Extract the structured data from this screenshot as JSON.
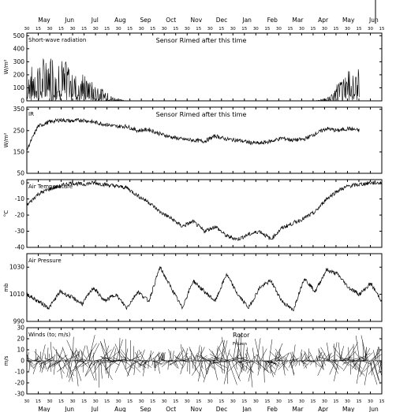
{
  "chart_data": {
    "type": "line",
    "months_top": [
      "May",
      "Jun",
      "Jul",
      "Aug",
      "Sep",
      "Oct",
      "Nov",
      "Dec",
      "Jan",
      "Feb",
      "Mar",
      "Apr",
      "May",
      "Jun"
    ],
    "months_bottom": [
      "May",
      "Jun",
      "Jul",
      "Aug",
      "Sep",
      "Oct",
      "Nov",
      "Dec",
      "Jan",
      "Feb",
      "Mar",
      "Apr",
      "May",
      "Jun"
    ],
    "day_ticks": [
      "30",
      "15",
      "30",
      "15",
      "30",
      "15",
      "30",
      "15",
      "30",
      "15",
      "30",
      "15",
      "30",
      "15",
      "30",
      "15",
      "30",
      "15",
      "30",
      "15",
      "30",
      "15",
      "30",
      "15",
      "30",
      "15",
      "30",
      "15",
      "30",
      "15",
      "30",
      "15"
    ],
    "panels": [
      {
        "label": "Short-wave radiation",
        "annotation": "Sensor Rimed after this time",
        "ylabel": "W/m²",
        "yticks": [
          "500",
          "400",
          "300",
          "200",
          "100",
          "0"
        ],
        "ylim": [
          0,
          520
        ],
        "series": [
          {
            "x": [
              0,
              15,
              30,
              45,
              60,
              75,
              90,
              105,
              120,
              135,
              150,
              165,
              180,
              195,
              210,
              225,
              240,
              255,
              270,
              285,
              300,
              315,
              330,
              345,
              360,
              375,
              390,
              405,
              420,
              435,
              450
            ],
            "values": [
              210,
              280,
              320,
              300,
              250,
              190,
              130,
              70,
              20,
              0,
              0,
              0,
              0,
              0,
              0,
              0,
              0,
              0,
              0,
              0,
              0,
              0,
              0,
              0,
              0,
              0,
              0,
              20,
              120,
              210,
              240
            ]
          }
        ]
      },
      {
        "label": "IR",
        "annotation": "Sensor Rimed after this time",
        "ylabel": "W/m²",
        "yticks": [
          "350",
          "250",
          "150",
          "50"
        ],
        "ylim": [
          50,
          360
        ],
        "series": [
          {
            "x": [
              0,
              15,
              30,
              45,
              60,
              75,
              90,
              105,
              120,
              135,
              150,
              165,
              180,
              195,
              210,
              225,
              240,
              255,
              270,
              285,
              300,
              315,
              330,
              345,
              360,
              375,
              390,
              405,
              420,
              435,
              450
            ],
            "values": [
              160,
              270,
              290,
              300,
              295,
              300,
              290,
              280,
              270,
              270,
              250,
              255,
              235,
              220,
              210,
              205,
              200,
              225,
              210,
              205,
              195,
              190,
              200,
              215,
              205,
              210,
              235,
              260,
              250,
              260,
              250
            ]
          }
        ]
      },
      {
        "label": "Air Temperature",
        "ylabel": "°C",
        "yticks": [
          "0",
          "-10",
          "-20",
          "-30",
          "-40"
        ],
        "ylim": [
          -40,
          2
        ],
        "series": [
          {
            "x": [
              0,
              15,
              30,
              45,
              60,
              75,
              90,
              105,
              120,
              135,
              150,
              165,
              180,
              195,
              210,
              225,
              240,
              255,
              270,
              285,
              300,
              315,
              330,
              345,
              360,
              375,
              390,
              405,
              420,
              435,
              450,
              465,
              480
            ],
            "values": [
              -14,
              -7,
              -4,
              -2,
              0,
              -1,
              0,
              -1,
              -2,
              -3,
              -8,
              -12,
              -18,
              -22,
              -27,
              -24,
              -30,
              -27,
              -33,
              -35,
              -32,
              -30,
              -35,
              -28,
              -25,
              -22,
              -18,
              -10,
              -5,
              -2,
              -1,
              0,
              0
            ]
          }
        ]
      },
      {
        "label": "Air Pressure",
        "ylabel": "mb",
        "yticks": [
          "1030",
          "1010",
          "990"
        ],
        "ylim": [
          990,
          1040
        ],
        "series": [
          {
            "x": [
              0,
              15,
              30,
              45,
              60,
              75,
              90,
              105,
              120,
              135,
              150,
              165,
              180,
              195,
              210,
              225,
              240,
              255,
              270,
              285,
              300,
              315,
              330,
              345,
              360,
              375,
              390,
              405,
              420,
              435,
              450,
              465,
              480
            ],
            "values": [
              1010,
              1005,
              1000,
              1012,
              1008,
              1003,
              1015,
              1005,
              1010,
              1000,
              1012,
              1005,
              1030,
              1015,
              1000,
              1020,
              1012,
              1005,
              1025,
              1010,
              1000,
              1015,
              1020,
              1005,
              998,
              1022,
              1012,
              1028,
              1025,
              1015,
              1010,
              1018,
              1005
            ]
          }
        ]
      },
      {
        "label": "Winds (to; m/s)",
        "annotation": "Rotor",
        "annotation2": "Frozen",
        "ylabel": "m/s",
        "yticks": [
          "30",
          "20",
          "10",
          "0",
          "-10",
          "-20",
          "-30"
        ],
        "ylim": [
          -30,
          30
        ]
      }
    ]
  }
}
